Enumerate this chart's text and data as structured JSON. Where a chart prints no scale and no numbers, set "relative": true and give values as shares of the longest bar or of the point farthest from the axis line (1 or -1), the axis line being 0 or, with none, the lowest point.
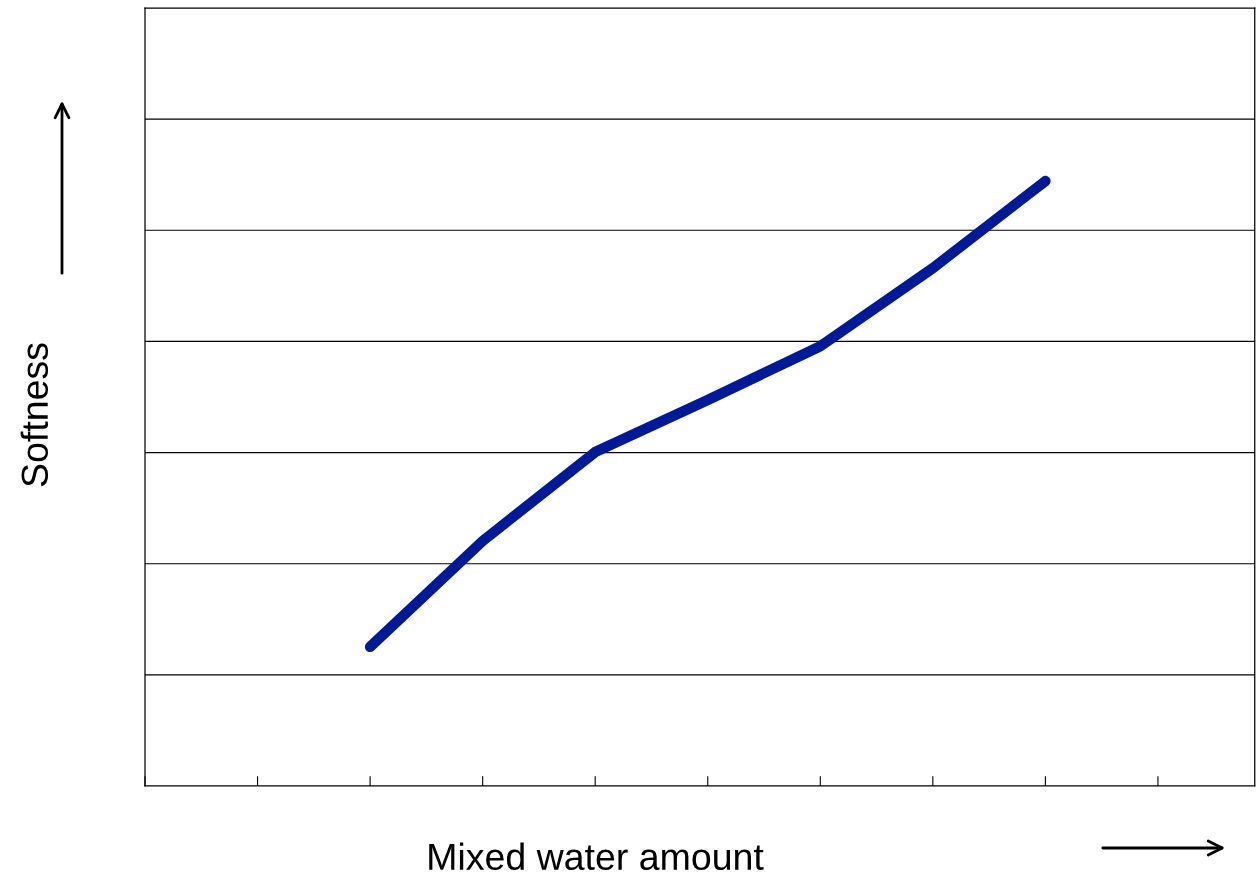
{
  "chart_data": {
    "type": "line",
    "relative": true,
    "xlabel": "Mixed water amount",
    "ylabel": "Softness",
    "categories": [
      null,
      null,
      null,
      null,
      null,
      null,
      null,
      null,
      null,
      null
    ],
    "series": [
      {
        "color": "#001a96",
        "values": [
          null,
          null,
          0.23,
          0.405,
          0.552,
          0.638,
          0.727,
          0.856,
          1.0,
          null
        ]
      }
    ],
    "grid": "y",
    "marker": "none",
    "line_style": "solid",
    "legend": false
  }
}
